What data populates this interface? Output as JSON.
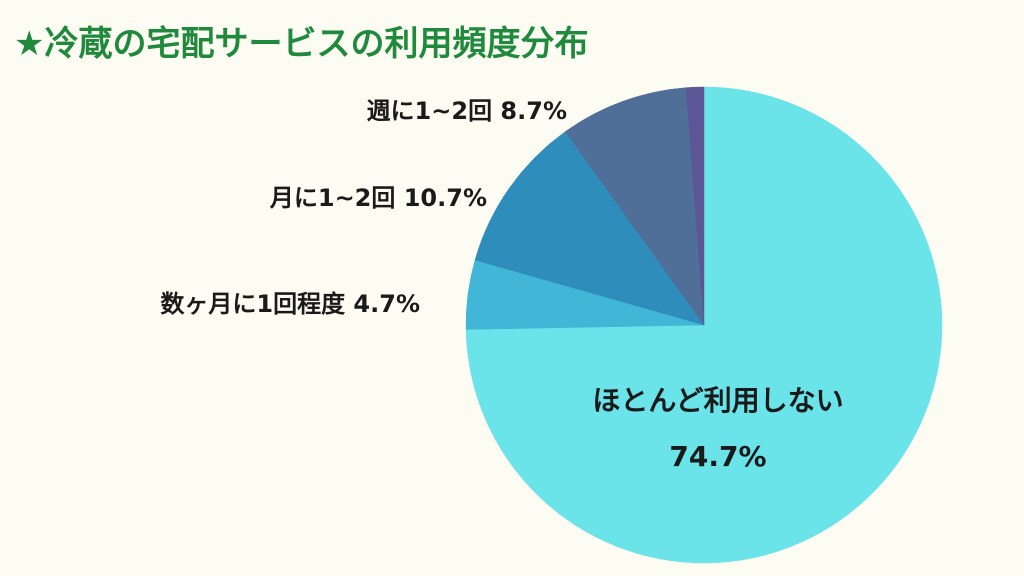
{
  "title": "★冷蔵の宅配サービスの利用頻度分布",
  "chart_data": {
    "type": "pie",
    "title": "★冷蔵の宅配サービスの利用頻度分布",
    "slices": [
      {
        "label": "ほとんど利用しない",
        "value": 74.7,
        "value_label": "74.7%",
        "color": "#6ae3e9"
      },
      {
        "label": "数ヶ月に1回程度",
        "value": 4.7,
        "value_label": "4.7%",
        "color": "#42b6d6"
      },
      {
        "label": "月に1~2回",
        "value": 10.7,
        "value_label": "10.7%",
        "color": "#2e8dbb"
      },
      {
        "label": "週に1~2回",
        "value": 8.7,
        "value_label": "8.7%",
        "color": "#4f6e98"
      },
      {
        "label": "",
        "value": 1.2,
        "value_label": "",
        "color": "#5c5696"
      }
    ],
    "start_angle": "12 o'clock",
    "direction": "clockwise",
    "legend": "none"
  }
}
